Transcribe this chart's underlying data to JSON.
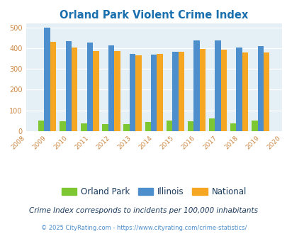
{
  "title": "Orland Park Violent Crime Index",
  "title_color": "#1a6faf",
  "years": [
    2009,
    2010,
    2011,
    2012,
    2013,
    2014,
    2015,
    2016,
    2017,
    2018,
    2019
  ],
  "orland_park": [
    50,
    46,
    38,
    33,
    35,
    43,
    51,
    47,
    62,
    37,
    50
  ],
  "illinois": [
    499,
    435,
    429,
    415,
    372,
    370,
    384,
    438,
    438,
    405,
    409
  ],
  "national": [
    430,
    405,
    387,
    387,
    367,
    372,
    383,
    396,
    394,
    380,
    379
  ],
  "color_orland": "#7dc832",
  "color_illinois": "#4d8fcc",
  "color_national": "#f5a623",
  "bg_color": "#e4f0f6",
  "xlim": [
    2008.2,
    2020.0
  ],
  "ylim": [
    0,
    520
  ],
  "yticks": [
    0,
    100,
    200,
    300,
    400,
    500
  ],
  "subtitle": "Crime Index corresponds to incidents per 100,000 inhabitants",
  "subtitle_color": "#1a3a5c",
  "footer": "© 2025 CityRating.com - https://www.cityrating.com/crime-statistics/",
  "footer_color": "#4d8fcc",
  "bar_width": 0.28,
  "legend_label_color": "#1a3a5c",
  "tick_color": "#cc8844"
}
